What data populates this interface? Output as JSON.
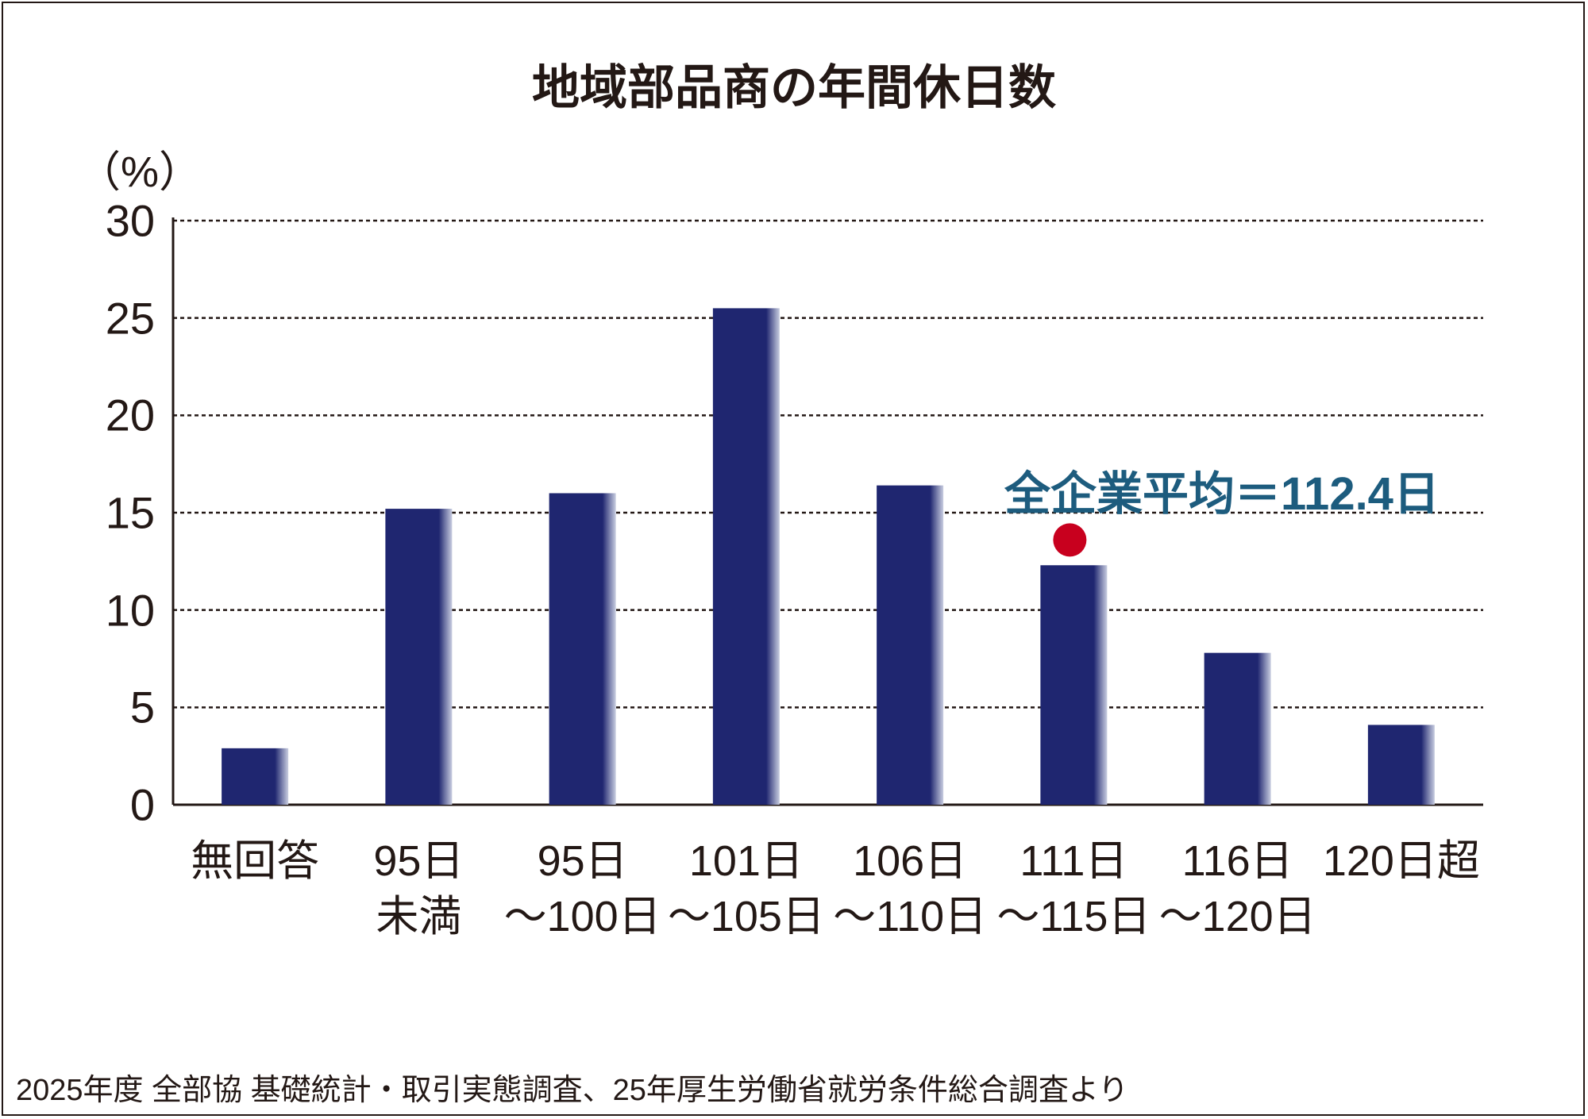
{
  "chart_data": {
    "type": "bar",
    "title": "地域部品商の年間休日数",
    "ylabel": "（%）",
    "xlabel": "",
    "ylim": [
      0,
      30
    ],
    "yticks": [
      "0",
      "5",
      "10",
      "15",
      "20",
      "25",
      "30"
    ],
    "grid": true,
    "categories": [
      "無回答",
      "95日\n未満",
      "95日\n～100日",
      "101日\n～105日",
      "106日\n～110日",
      "111日\n～115日",
      "116日\n～120日",
      "120日超"
    ],
    "values": [
      2.9,
      15.2,
      16.0,
      25.5,
      16.4,
      12.3,
      7.8,
      4.1
    ],
    "annotation": {
      "text": "全企業平均＝112.4日",
      "category_index": 5,
      "marker_value": 13.6
    },
    "source": "2025年度 全部協 基礎統計・取引実態調査、25年厚生労働省就労条件総合調査より"
  },
  "colors": {
    "bar": "#1f2670",
    "marker": "#c8001e",
    "annotation": "#1d5c7e"
  }
}
